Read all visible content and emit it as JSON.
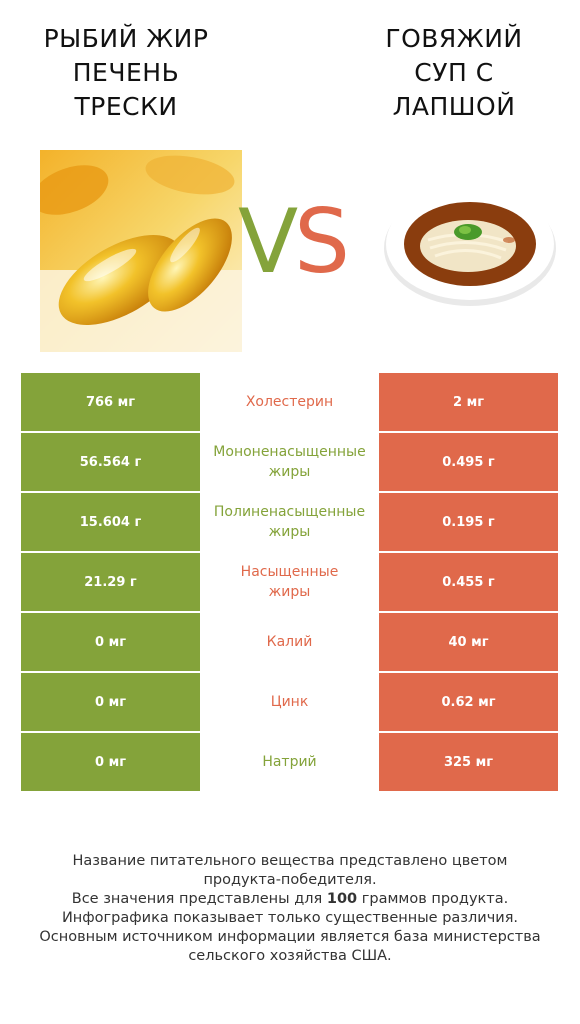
{
  "left_product": {
    "title_lines": [
      "РЫБИЙ ЖИР",
      "ПЕЧЕНЬ",
      "ТРЕСКИ"
    ]
  },
  "right_product": {
    "title_lines": [
      "ГОВЯЖИЙ",
      "СУП С",
      "ЛАПШОЙ"
    ]
  },
  "vs": {
    "v": "V",
    "s": "S"
  },
  "colors": {
    "green": "#84a33a",
    "red": "#e0694b"
  },
  "rows": [
    {
      "left": "766 мг",
      "label": "Холестерин",
      "right": "2 мг",
      "winner": "red"
    },
    {
      "left": "56.564 г",
      "label": "Мононенасыщенные\nжиры",
      "right": "0.495 г",
      "winner": "green"
    },
    {
      "left": "15.604 г",
      "label": "Полиненасыщенные\nжиры",
      "right": "0.195 г",
      "winner": "green"
    },
    {
      "left": "21.29 г",
      "label": "Насыщенные\nжиры",
      "right": "0.455 г",
      "winner": "red"
    },
    {
      "left": "0 мг",
      "label": "Калий",
      "right": "40 мг",
      "winner": "red"
    },
    {
      "left": "0 мг",
      "label": "Цинк",
      "right": "0.62 мг",
      "winner": "red"
    },
    {
      "left": "0 мг",
      "label": "Натрий",
      "right": "325 мг",
      "winner": "green"
    }
  ],
  "footer": {
    "line1": "Название питательного вещества представлено цветом",
    "line2": "продукта-победителя.",
    "line3_pre": "Все значения представлены для ",
    "line3_bold": "100",
    "line3_post": " граммов продукта.",
    "line4": "Инфографика показывает только существенные различия.",
    "line5": "Основным источником информации является база министерства",
    "line6": "сельского хозяйства США."
  }
}
